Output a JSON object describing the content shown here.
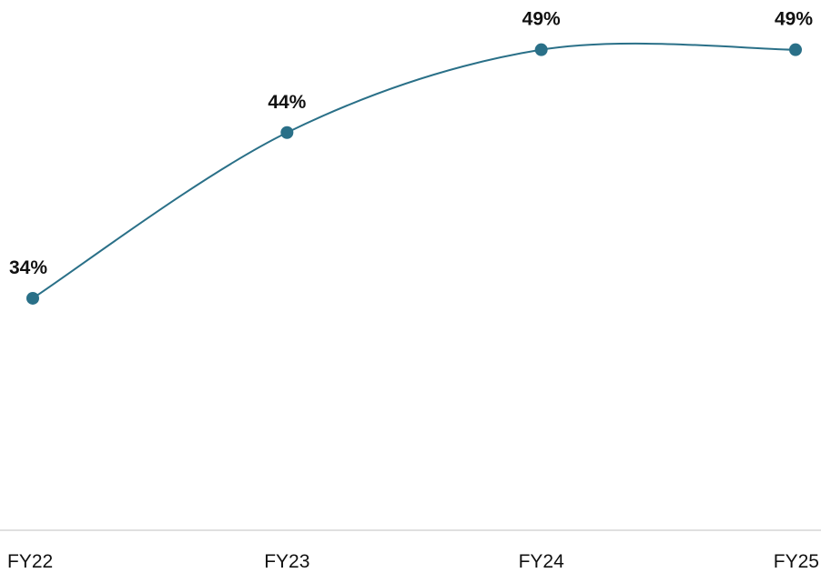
{
  "chart_data": {
    "type": "line",
    "categories": [
      "FY22",
      "FY23",
      "FY24",
      "FY25"
    ],
    "series": [
      {
        "values": [
          34,
          44,
          49,
          49
        ],
        "labels": [
          "34%",
          "44%",
          "49%",
          "49%"
        ]
      }
    ],
    "title": "",
    "xlabel": "",
    "ylabel": "",
    "ylim": [
      20,
      52
    ],
    "smooth": true,
    "grid": false,
    "legend": "none",
    "colors": {
      "line": "#2a7088",
      "marker": "#2a7088",
      "axis": "#d6d6d6",
      "text": "#111111"
    }
  }
}
